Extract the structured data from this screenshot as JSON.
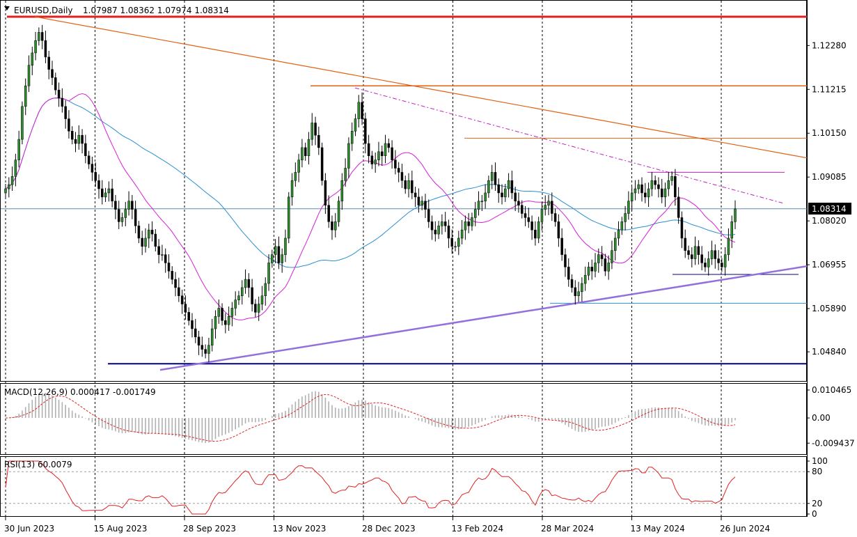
{
  "header": {
    "symbol": "EURUSD,Daily",
    "ohlc": "1.07987 1.08362 1.07974 1.08314"
  },
  "chart_data": [
    {
      "type": "candlestick",
      "title": "EURUSD,Daily",
      "x_labels": [
        "30 Jun 2023",
        "15 Aug 2023",
        "28 Sep 2023",
        "13 Nov 2023",
        "28 Dec 2023",
        "13 Feb 2024",
        "28 Mar 2024",
        "13 May 2024",
        "26 Jun 2024"
      ],
      "y_ticks": [
        "1.12280",
        "1.11215",
        "1.10150",
        "1.09085",
        "1.08020",
        "1.06955",
        "1.05890",
        "1.04840"
      ],
      "ylim": [
        1.0425,
        1.1325
      ],
      "current_price_label": "1.08314",
      "current_price": 1.08314,
      "close_series": [
        1.088,
        1.089,
        1.091,
        1.095,
        1.1,
        1.108,
        1.113,
        1.118,
        1.121,
        1.124,
        1.126,
        1.124,
        1.12,
        1.117,
        1.115,
        1.112,
        1.11,
        1.108,
        1.105,
        1.102,
        1.1,
        1.099,
        1.101,
        1.099,
        1.096,
        1.094,
        1.092,
        1.09,
        1.088,
        1.086,
        1.087,
        1.088,
        1.085,
        1.083,
        1.08,
        1.081,
        1.083,
        1.085,
        1.083,
        1.079,
        1.076,
        1.074,
        1.076,
        1.078,
        1.077,
        1.074,
        1.072,
        1.072,
        1.07,
        1.068,
        1.066,
        1.064,
        1.062,
        1.06,
        1.058,
        1.056,
        1.054,
        1.052,
        1.05,
        1.049,
        1.048,
        1.05,
        1.054,
        1.057,
        1.059,
        1.056,
        1.055,
        1.057,
        1.059,
        1.061,
        1.062,
        1.064,
        1.066,
        1.064,
        1.06,
        1.058,
        1.06,
        1.062,
        1.065,
        1.07,
        1.072,
        1.074,
        1.07,
        1.072,
        1.076,
        1.086,
        1.09,
        1.092,
        1.095,
        1.098,
        1.096,
        1.1,
        1.104,
        1.101,
        1.098,
        1.09,
        1.084,
        1.08,
        1.078,
        1.08,
        1.085,
        1.09,
        1.093,
        1.099,
        1.102,
        1.105,
        1.109,
        1.105,
        1.099,
        1.096,
        1.094,
        1.095,
        1.097,
        1.096,
        1.099,
        1.098,
        1.095,
        1.093,
        1.092,
        1.09,
        1.088,
        1.09,
        1.087,
        1.086,
        1.084,
        1.085,
        1.083,
        1.08,
        1.078,
        1.077,
        1.079,
        1.08,
        1.079,
        1.076,
        1.074,
        1.074,
        1.076,
        1.078,
        1.08,
        1.079,
        1.081,
        1.083,
        1.085,
        1.085,
        1.087,
        1.09,
        1.092,
        1.089,
        1.087,
        1.086,
        1.088,
        1.09,
        1.087,
        1.085,
        1.084,
        1.082,
        1.081,
        1.08,
        1.078,
        1.076,
        1.08,
        1.083,
        1.084,
        1.085,
        1.082,
        1.08,
        1.076,
        1.072,
        1.069,
        1.066,
        1.064,
        1.062,
        1.063,
        1.065,
        1.067,
        1.069,
        1.068,
        1.07,
        1.072,
        1.071,
        1.068,
        1.07,
        1.073,
        1.076,
        1.078,
        1.08,
        1.082,
        1.085,
        1.087,
        1.088,
        1.089,
        1.087,
        1.086,
        1.088,
        1.09,
        1.089,
        1.088,
        1.086,
        1.088,
        1.09,
        1.091,
        1.086,
        1.081,
        1.076,
        1.073,
        1.072,
        1.071,
        1.074,
        1.072,
        1.07,
        1.069,
        1.071,
        1.073,
        1.071,
        1.07,
        1.069,
        1.072,
        1.076,
        1.08,
        1.0831
      ],
      "ma_fast_color": "#d61ed6",
      "ma_slow_color": "#2a8fd1",
      "trendlines": [
        {
          "color": "#e02020",
          "width": 3,
          "y1": 1.1298,
          "y2": 1.1298
        },
        {
          "color": "#e06010",
          "width": 1.5,
          "y1": 1.113,
          "y2": 1.113
        },
        {
          "color": "#e06010",
          "width": 1,
          "y1": 1.1003,
          "y2": 1.1003
        },
        {
          "color": "#c020c0",
          "width": 1,
          "y1": 1.092,
          "y2": 1.092
        },
        {
          "color": "#000080",
          "width": 2,
          "y1": 1.0455,
          "y2": 1.0455
        },
        {
          "color": "#000080",
          "width": 1,
          "y1": 1.0672,
          "y2": 1.0672
        },
        {
          "color": "#2a8fd1",
          "width": 1,
          "y1": 1.0602,
          "y2": 1.0602
        }
      ]
    },
    {
      "type": "bar",
      "title": "MACD(12,26,9) 0.000417 -0.001749",
      "y_ticks": [
        "0.010465",
        "0.00",
        "-0.009437"
      ],
      "ylim": [
        -0.0125,
        0.0115
      ],
      "signal_color": "#e02020"
    },
    {
      "type": "line",
      "title": "RSI(13) 60.0079",
      "y_ticks": [
        "100",
        "80",
        "20",
        "0"
      ],
      "ylim": [
        0,
        100
      ],
      "levels": [
        80,
        20
      ],
      "line_color": "#e02020"
    }
  ]
}
